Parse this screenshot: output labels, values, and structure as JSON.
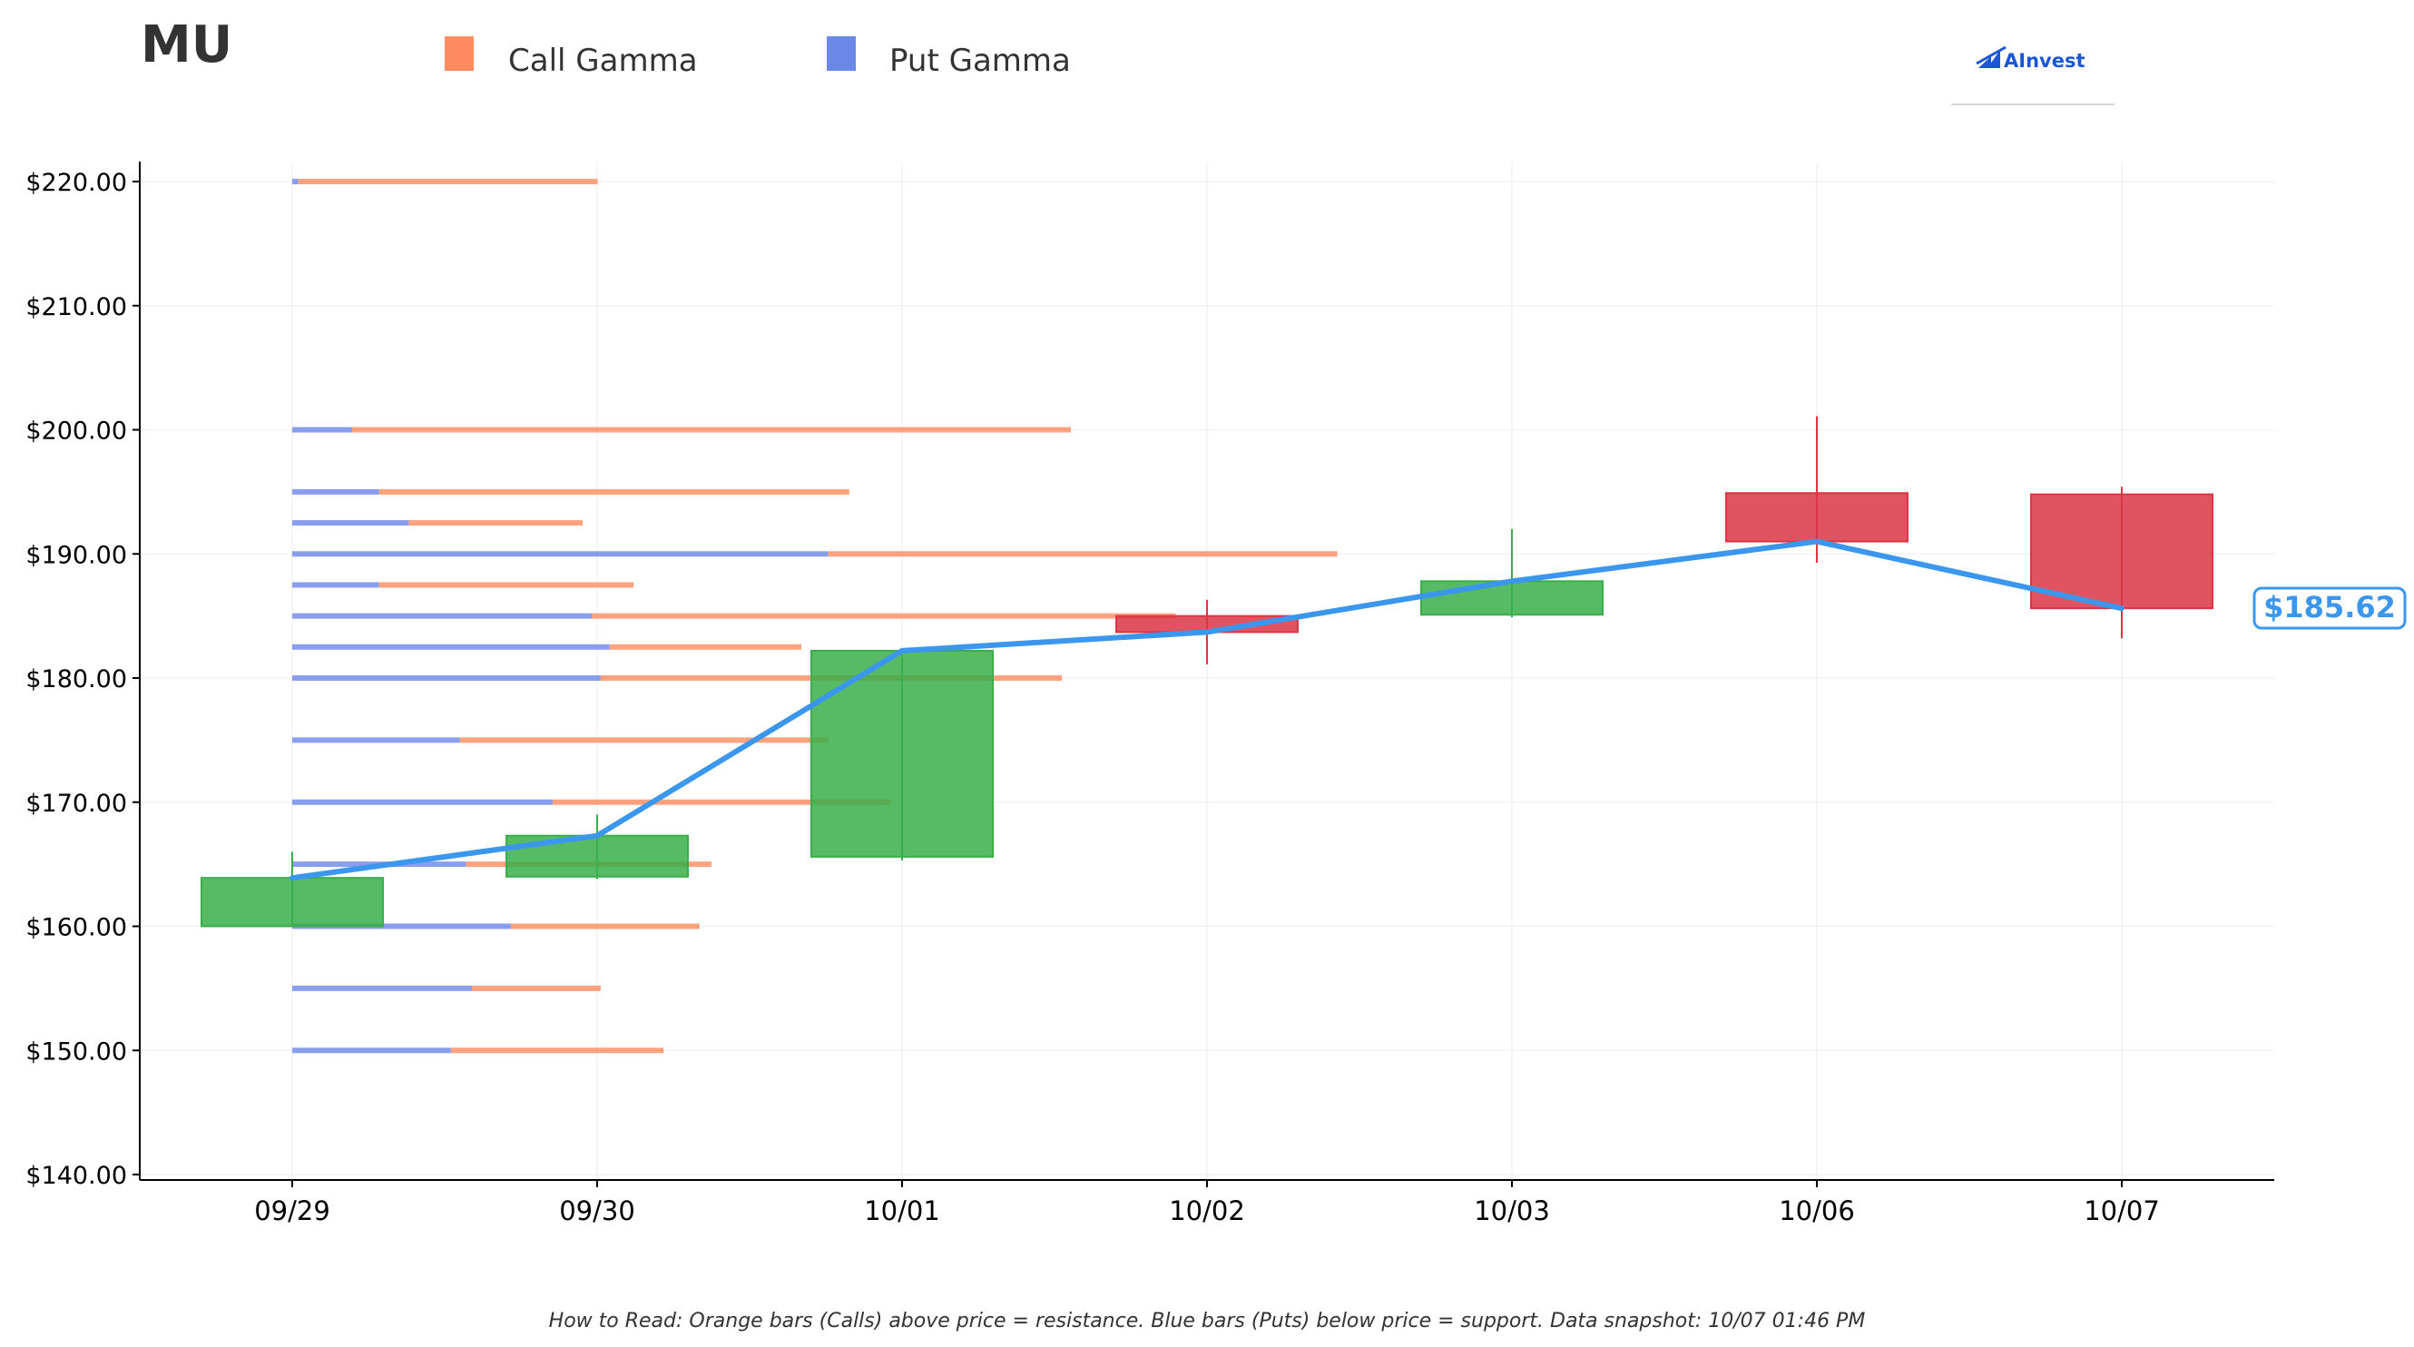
{
  "ticker": "MU",
  "brand": {
    "name": "AInvest",
    "icon": "ainvest-logo-icon"
  },
  "legend": {
    "call_label": "Call Gamma",
    "put_label": "Put Gamma",
    "call_color": "#ff8c5f",
    "put_color": "#6b87e8"
  },
  "footnote": "How to Read: Orange bars (Calls) above price = resistance. Blue bars (Puts) below price = support. Data snapshot: 10/07 01:46 PM",
  "current_price_label": "$185.62",
  "chart_data": {
    "type": "candlestick",
    "categories": [
      "09/29",
      "09/30",
      "10/01",
      "10/02",
      "10/03",
      "10/06",
      "10/07"
    ],
    "ylim": [
      140,
      220
    ],
    "yticks": [
      140,
      150,
      160,
      170,
      180,
      190,
      200,
      210,
      220
    ],
    "ytick_labels": [
      "$140.00",
      "$150.00",
      "$160.00",
      "$170.00",
      "$180.00",
      "$190.00",
      "$200.00",
      "$210.00",
      "$220.00"
    ],
    "grid": true,
    "colors": {
      "up": "#3aae4a",
      "down": "#dc3545",
      "close_line": "#3b96ee"
    },
    "candles": [
      {
        "date": "09/29",
        "open": 160.0,
        "close": 163.9,
        "high": 166.0,
        "low": 160.0
      },
      {
        "date": "09/30",
        "open": 164.0,
        "close": 167.3,
        "high": 169.0,
        "low": 163.8
      },
      {
        "date": "10/01",
        "open": 165.6,
        "close": 182.2,
        "high": 182.3,
        "low": 165.3
      },
      {
        "date": "10/02",
        "open": 185.0,
        "close": 183.7,
        "high": 186.3,
        "low": 181.1
      },
      {
        "date": "10/03",
        "open": 185.1,
        "close": 187.8,
        "high": 192.0,
        "low": 184.9
      },
      {
        "date": "10/06",
        "open": 194.9,
        "close": 191.0,
        "high": 201.1,
        "low": 189.3
      },
      {
        "date": "10/07",
        "open": 194.8,
        "close": 185.62,
        "high": 195.4,
        "low": 183.2
      }
    ],
    "close_line": [
      163.9,
      167.3,
      182.2,
      183.7,
      187.8,
      191.0,
      185.62
    ],
    "gamma_levels": [
      {
        "strike": 220.0,
        "put": 0.02,
        "call": 1.0
      },
      {
        "strike": 200.0,
        "put": 0.2,
        "call": 2.4
      },
      {
        "strike": 195.0,
        "put": 0.29,
        "call": 1.57
      },
      {
        "strike": 192.5,
        "put": 0.39,
        "call": 0.58
      },
      {
        "strike": 190.0,
        "put": 1.79,
        "call": 1.7
      },
      {
        "strike": 187.5,
        "put": 0.29,
        "call": 0.85
      },
      {
        "strike": 185.0,
        "put": 1.0,
        "call": 1.95
      },
      {
        "strike": 182.5,
        "put": 1.06,
        "call": 0.64
      },
      {
        "strike": 180.0,
        "put": 1.03,
        "call": 1.54
      },
      {
        "strike": 175.0,
        "put": 0.56,
        "call": 1.23
      },
      {
        "strike": 170.0,
        "put": 0.87,
        "call": 1.13
      },
      {
        "strike": 165.0,
        "put": 0.58,
        "call": 0.82
      },
      {
        "strike": 160.0,
        "put": 0.73,
        "call": 0.63
      },
      {
        "strike": 155.0,
        "put": 0.6,
        "call": 0.43
      },
      {
        "strike": 150.0,
        "put": 0.53,
        "call": 0.71
      }
    ]
  }
}
